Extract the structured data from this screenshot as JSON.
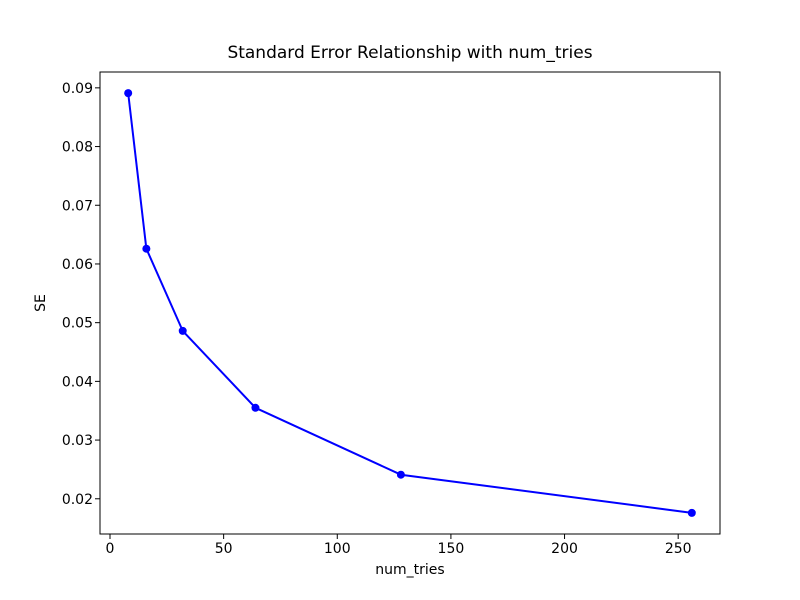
{
  "figure": {
    "background": "#ffffff",
    "text_color": "#000000"
  },
  "chart_data": {
    "type": "line",
    "title": "Standard Error Relationship with num_tries",
    "xlabel": "num_tries",
    "ylabel": "SE",
    "grid": false,
    "legend": null,
    "xlim": [
      -4.4,
      268.4
    ],
    "ylim": [
      0.014,
      0.0927
    ],
    "xticks": [
      0,
      50,
      100,
      150,
      200,
      250
    ],
    "xtick_labels": [
      "0",
      "50",
      "100",
      "150",
      "200",
      "250"
    ],
    "yticks": [
      0.02,
      0.03,
      0.04,
      0.05,
      0.06,
      0.07,
      0.08,
      0.09
    ],
    "ytick_labels": [
      "0.02",
      "0.03",
      "0.04",
      "0.05",
      "0.06",
      "0.07",
      "0.08",
      "0.09"
    ],
    "series": [
      {
        "name": "SE",
        "color": "#0000ff",
        "marker": "circle",
        "x": [
          8,
          16,
          32,
          64,
          128,
          256
        ],
        "values": [
          0.0891,
          0.0626,
          0.0486,
          0.0355,
          0.0241,
          0.0176
        ]
      }
    ]
  }
}
